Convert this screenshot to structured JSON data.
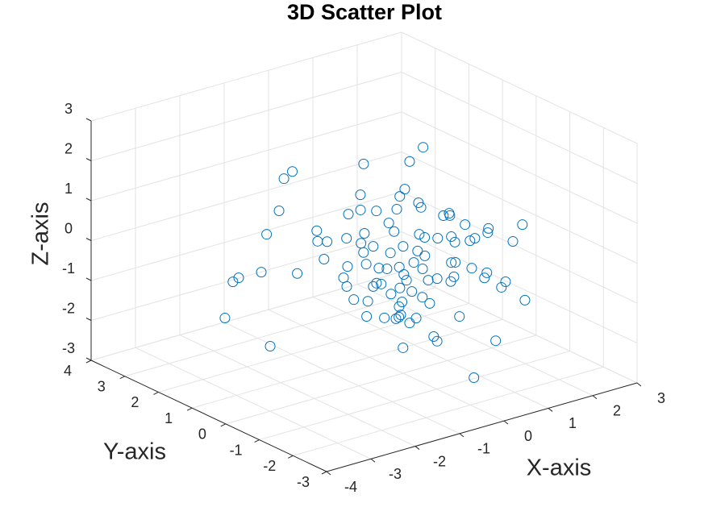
{
  "chart_data": {
    "type": "scatter3d",
    "title": "3D Scatter Plot",
    "xlabel": "X-axis",
    "ylabel": "Y-axis",
    "zlabel": "Z-axis",
    "color": "#0072bd",
    "grid": true,
    "xlim": [
      -4,
      3
    ],
    "ylim": [
      -3,
      4
    ],
    "zlim": [
      -3,
      3
    ],
    "xticks": [
      -4,
      -3,
      -2,
      -1,
      0,
      1,
      2,
      3
    ],
    "yticks": [
      -3,
      -2,
      -1,
      0,
      1,
      2,
      3,
      4
    ],
    "zticks": [
      -3,
      -2,
      -1,
      0,
      1,
      2,
      3
    ],
    "x": [
      0.83,
      -0.46,
      0.02,
      -0.98,
      -1.17,
      -1.1,
      -0.81,
      -0.53,
      1.56,
      -0.43,
      -1.28,
      -1.84,
      -0.05,
      -0.83,
      0.54,
      -0.23,
      1.19,
      0.6,
      2.61,
      1.09,
      2.69,
      -0.43,
      -1.56,
      -0.55,
      0.48,
      -2.01,
      2.06,
      -0.41,
      -0.5,
      -2.11,
      -0.57,
      -0.12,
      1.69,
      0.86,
      1.85,
      0.37,
      1.77,
      2.02,
      0.54,
      -1.12,
      0.38,
      -0.28,
      1.4,
      -1.12,
      -1.1,
      -2.39,
      -0.68,
      -1.0,
      0.85,
      -0.92,
      0.62,
      -0.59,
      1.35,
      0.86,
      1.86,
      0.41,
      2.04,
      -1.68,
      -2.19,
      -2.32,
      -0.87,
      -1.95,
      0.31,
      -0.9,
      0.76,
      -0.57,
      0.92,
      0.62,
      2.36,
      1.0,
      2.69,
      1.61,
      -0.36,
      -0.3,
      0.88,
      -1.41,
      -0.96,
      -1.25,
      1.19,
      -0.4,
      0.98,
      2.14,
      0.82,
      -0.28,
      -0.14,
      -1.56,
      -0.01,
      -0.55,
      1.36,
      -0.54,
      1.65,
      -2.5,
      0.69,
      0.54,
      0.95,
      -1.48,
      0.15,
      0.08,
      0.72,
      -0.47
    ],
    "y": [
      0.5,
      -0.8,
      1.2,
      2,
      2,
      -1.5,
      0.2,
      -0.6,
      1.6,
      -1.1,
      2,
      -0.8,
      1.2,
      -0.3,
      0.9,
      -1.5,
      0.2,
      -0.6,
      1.6,
      -1.1,
      0,
      2,
      2,
      -0.3,
      0.9,
      -1.5,
      0.2,
      2,
      1.6,
      -1.1,
      0.5,
      -0.8,
      1.2,
      -0.3,
      0.9,
      -1.5,
      0.2,
      -0.6,
      1.6,
      -1.1,
      0.5,
      -0.8,
      1.2,
      -0.3,
      0.9,
      -1.5,
      0.2,
      -0.6,
      1.6,
      -1.1,
      0.5,
      -0.8,
      1.2,
      -0.3,
      0.9,
      -1.5,
      0.2,
      2,
      2,
      2,
      2,
      -0.8,
      1.2,
      -0.3,
      0.9,
      -1.5,
      0.2,
      -0.6,
      1.6,
      -1.1,
      0.5,
      -0.8,
      1.2,
      -0.3,
      0.9,
      -1.5,
      0.2,
      -0.6,
      1.6,
      -1.1,
      0.5,
      -0.8,
      1.2,
      -0.3,
      0.9,
      -1.5,
      0.2,
      -0.6,
      1.6,
      -1.1,
      0.5,
      2,
      0,
      -0.3,
      -1.5,
      2,
      0.2,
      -2,
      1.6,
      -1.1
    ],
    "z": [
      2.2,
      2.77,
      1.76,
      1.57,
      1.45,
      2.56,
      1.65,
      1.84,
      0.14,
      1.73,
      0.68,
      1.89,
      0.63,
      1.45,
      0.58,
      1.62,
      0.55,
      1.0,
      -0.74,
      0.72,
      -0.13,
      -0.09,
      0.18,
      1.06,
      0.04,
      1.74,
      -0.21,
      -0.36,
      -0.18,
      1.49,
      0.24,
      0.76,
      -0.63,
      0.27,
      -0.66,
      0.8,
      -0.26,
      -0.1,
      -0.63,
      0.81,
      -0.14,
      0.47,
      -0.98,
      0.5,
      -0.15,
      1.03,
      -0.13,
      0.19,
      -1.29,
      0.39,
      -0.62,
      -0.02,
      -1.29,
      -0.38,
      -1.17,
      0.1,
      -1.21,
      -0.73,
      -0.71,
      -0.77,
      -1.02,
      0.33,
      -1.32,
      -0.42,
      -1.27,
      0.11,
      -1.0,
      -0.66,
      -1.97,
      -0.49,
      -1.76,
      -1.04,
      -1.19,
      -0.65,
      -1.59,
      0.03,
      -0.93,
      -0.56,
      -2.23,
      -0.53,
      -1.76,
      -1.53,
      -2.07,
      -1.33,
      -1.89,
      -0.52,
      -1.71,
      -1.18,
      -2.81,
      -1.01,
      -2.3,
      -1.62,
      -2.3,
      -2.25,
      -1.89,
      -2.65,
      -2.49,
      -2.34,
      -1.63,
      1.07
    ]
  }
}
